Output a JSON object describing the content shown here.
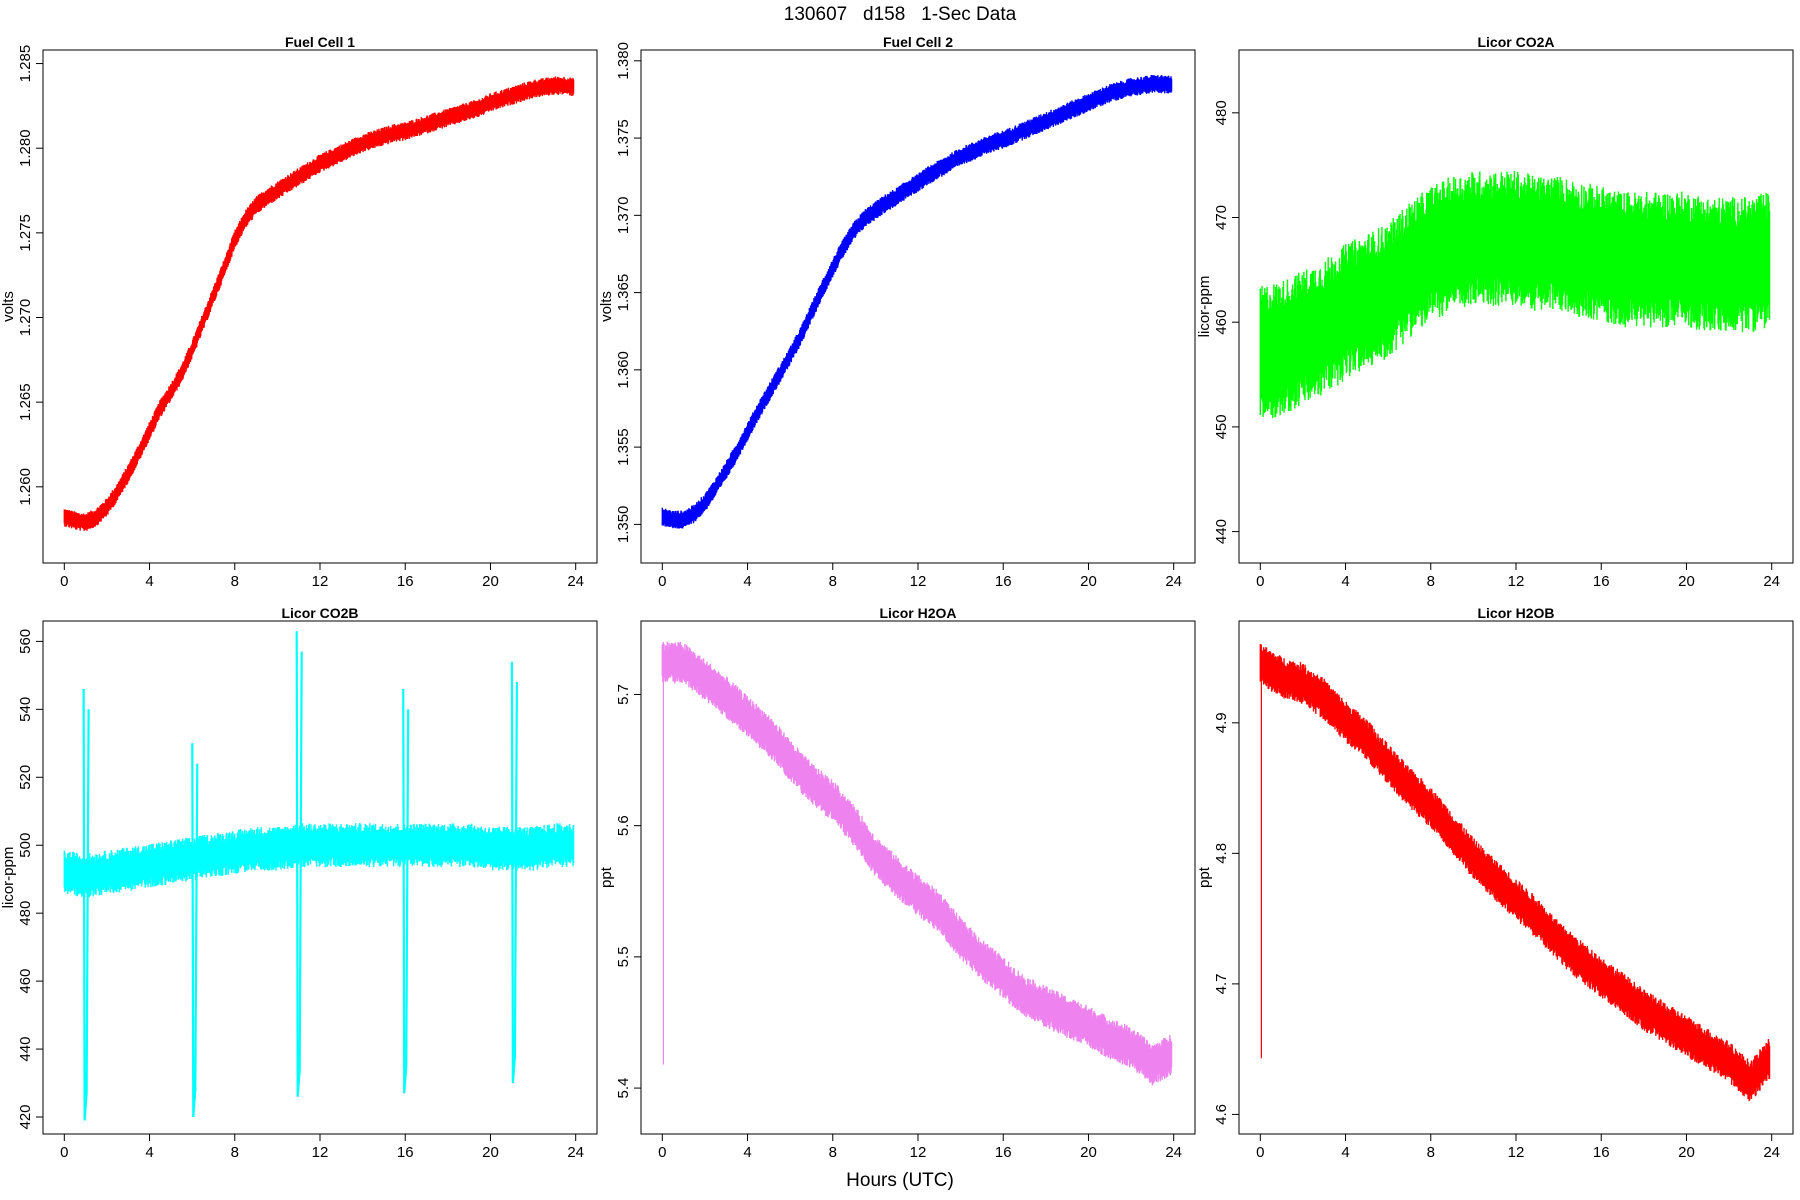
{
  "figure": {
    "title": "130607   d158   1-Sec Data",
    "xlabel": "Hours (UTC)"
  },
  "chart_data": [
    {
      "type": "line",
      "title": "Fuel Cell 1",
      "xlabel": "",
      "ylabel": "volts",
      "color": "#ff0000",
      "xlim": [
        -1,
        25
      ],
      "ylim": [
        1.2555,
        1.2858
      ],
      "x_ticks": [
        0,
        4,
        8,
        12,
        16,
        20,
        24
      ],
      "y_ticks": [
        1.26,
        1.265,
        1.27,
        1.275,
        1.28,
        1.285
      ],
      "y_tick_labels": [
        "1.260",
        "1.265",
        "1.270",
        "1.275",
        "1.280",
        "1.285"
      ],
      "series": [
        {
          "x": [
            0,
            0.5,
            1,
            1.5,
            2,
            2.5,
            3,
            3.5,
            4,
            4.5,
            5,
            5.5,
            6,
            6.5,
            7,
            7.5,
            8,
            8.5,
            9,
            9.5,
            10,
            10.5,
            11,
            11.5,
            12,
            12.5,
            13,
            13.5,
            14,
            14.5,
            15,
            15.5,
            16,
            16.5,
            17,
            17.5,
            18,
            18.5,
            19,
            19.5,
            20,
            20.5,
            21,
            21.5,
            22,
            22.5,
            23,
            23.5,
            23.9
          ],
          "y": [
            1.2582,
            1.258,
            1.2579,
            1.2582,
            1.2588,
            1.2597,
            1.2608,
            1.262,
            1.2633,
            1.2646,
            1.2656,
            1.2667,
            1.2681,
            1.2697,
            1.2713,
            1.2729,
            1.2746,
            1.2758,
            1.2766,
            1.2771,
            1.2775,
            1.2779,
            1.2783,
            1.2787,
            1.2791,
            1.2794,
            1.2797,
            1.28,
            1.2803,
            1.2805,
            1.2807,
            1.2809,
            1.281,
            1.2812,
            1.2814,
            1.2816,
            1.2818,
            1.282,
            1.2822,
            1.2824,
            1.2827,
            1.2829,
            1.2831,
            1.2833,
            1.2835,
            1.2836,
            1.2837,
            1.2837,
            1.2836
          ],
          "spread": 0.00055
        }
      ]
    },
    {
      "type": "line",
      "title": "Fuel Cell 2",
      "xlabel": "",
      "ylabel": "volts",
      "color": "#0000ff",
      "xlim": [
        -1,
        25
      ],
      "ylim": [
        1.3475,
        1.3807
      ],
      "x_ticks": [
        0,
        4,
        8,
        12,
        16,
        20,
        24
      ],
      "y_ticks": [
        1.35,
        1.355,
        1.36,
        1.365,
        1.37,
        1.375,
        1.38
      ],
      "y_tick_labels": [
        "1.350",
        "1.355",
        "1.360",
        "1.365",
        "1.370",
        "1.375",
        "1.380"
      ],
      "series": [
        {
          "x": [
            0,
            0.5,
            1,
            1.5,
            2,
            2.5,
            3,
            3.5,
            4,
            4.5,
            5,
            5.5,
            6,
            6.5,
            7,
            7.5,
            8,
            8.5,
            9,
            9.5,
            10,
            10.5,
            11,
            11.5,
            12,
            12.5,
            13,
            13.5,
            14,
            14.5,
            15,
            15.5,
            16,
            16.5,
            17,
            17.5,
            18,
            18.5,
            19,
            19.5,
            20,
            20.5,
            21,
            21.5,
            22,
            22.5,
            23,
            23.5,
            23.9
          ],
          "y": [
            1.3505,
            1.3503,
            1.3503,
            1.3507,
            1.3514,
            1.3524,
            1.3535,
            1.3547,
            1.356,
            1.3573,
            1.3585,
            1.3597,
            1.3609,
            1.3622,
            1.3637,
            1.3652,
            1.3666,
            1.3679,
            1.369,
            1.3698,
            1.3703,
            1.3708,
            1.3712,
            1.3717,
            1.3721,
            1.3726,
            1.373,
            1.3734,
            1.3738,
            1.3741,
            1.3744,
            1.3747,
            1.3749,
            1.3752,
            1.3755,
            1.3758,
            1.3761,
            1.3764,
            1.3767,
            1.377,
            1.3773,
            1.3776,
            1.3779,
            1.3781,
            1.3783,
            1.3784,
            1.3785,
            1.3785,
            1.3784
          ],
          "spread": 0.0006
        }
      ]
    },
    {
      "type": "line",
      "title": "Licor CO2A",
      "xlabel": "",
      "ylabel": "licor-ppm",
      "color": "#00ff00",
      "xlim": [
        -1,
        25
      ],
      "ylim": [
        437,
        486
      ],
      "x_ticks": [
        0,
        4,
        8,
        12,
        16,
        20,
        24
      ],
      "y_ticks": [
        440,
        450,
        460,
        470,
        480
      ],
      "y_tick_labels": [
        "440",
        "450",
        "460",
        "470",
        "480"
      ],
      "series": [
        {
          "x": [
            0,
            1,
            2,
            3,
            4,
            5,
            6,
            7,
            8,
            9,
            10,
            11,
            12,
            13,
            14,
            15,
            16,
            17,
            18,
            19,
            20,
            21,
            22,
            23,
            23.9
          ],
          "y": [
            457,
            457.5,
            458.5,
            459.5,
            461,
            462,
            463,
            465,
            466.5,
            467.5,
            468,
            468,
            468,
            467.5,
            467.5,
            467,
            466.5,
            466,
            466,
            466,
            466,
            465.5,
            465.5,
            465.5,
            466
          ],
          "spread": 6.5
        }
      ]
    },
    {
      "type": "line",
      "title": "Licor CO2B",
      "xlabel": "",
      "ylabel": "licor-ppm",
      "color": "#00ffff",
      "xlim": [
        -1,
        25
      ],
      "ylim": [
        415,
        566
      ],
      "x_ticks": [
        0,
        4,
        8,
        12,
        16,
        20,
        24
      ],
      "y_ticks": [
        420,
        440,
        460,
        480,
        500,
        520,
        540,
        560
      ],
      "y_tick_labels": [
        "420",
        "440",
        "460",
        "480",
        "500",
        "520",
        "540",
        "560"
      ],
      "series": [
        {
          "x": [
            0,
            1,
            2,
            3,
            4,
            5,
            6,
            7,
            8,
            9,
            10,
            11,
            12,
            13,
            14,
            15,
            16,
            17,
            18,
            19,
            20,
            21,
            22,
            23,
            23.9
          ],
          "y": [
            492,
            491,
            492,
            493,
            494,
            495,
            496,
            497,
            498,
            499,
            499,
            500,
            500,
            500,
            500,
            500,
            500,
            500,
            500,
            500,
            499,
            499,
            499,
            500,
            500
          ],
          "spread": 6.5,
          "drops": [
            {
              "x": 1.0,
              "min": 419,
              "max": 546
            },
            {
              "x": 6.1,
              "min": 420,
              "max": 530
            },
            {
              "x": 11.0,
              "min": 426,
              "max": 563
            },
            {
              "x": 16.0,
              "min": 427,
              "max": 546
            },
            {
              "x": 21.1,
              "min": 430,
              "max": 554
            }
          ]
        }
      ]
    },
    {
      "type": "line",
      "title": "Licor H2OA",
      "xlabel": "",
      "ylabel": "ppt",
      "color": "#ee82ee",
      "xlim": [
        -1,
        25
      ],
      "ylim": [
        5.365,
        5.756
      ],
      "x_ticks": [
        0,
        4,
        8,
        12,
        16,
        20,
        24
      ],
      "y_ticks": [
        5.4,
        5.5,
        5.6,
        5.7
      ],
      "y_tick_labels": [
        "5.4",
        "5.5",
        "5.6",
        "5.7"
      ],
      "series": [
        {
          "x": [
            0,
            1,
            2,
            3,
            4,
            5,
            6,
            7,
            8,
            9,
            10,
            11,
            12,
            13,
            14,
            15,
            16,
            17,
            18,
            19,
            20,
            21,
            22,
            23,
            23.9
          ],
          "y": [
            5.725,
            5.724,
            5.711,
            5.698,
            5.683,
            5.669,
            5.65,
            5.632,
            5.619,
            5.6,
            5.577,
            5.561,
            5.547,
            5.534,
            5.514,
            5.498,
            5.484,
            5.47,
            5.462,
            5.454,
            5.447,
            5.438,
            5.431,
            5.418,
            5.425
          ],
          "spread": 0.016,
          "spike": {
            "x": 0.05,
            "min": 5.418,
            "max": 5.74
          }
        }
      ]
    },
    {
      "type": "line",
      "title": "Licor H2OB",
      "xlabel": "",
      "ylabel": "ppt",
      "color": "#ff0000",
      "xlim": [
        -1,
        25
      ],
      "ylim": [
        4.585,
        4.978
      ],
      "x_ticks": [
        0,
        4,
        8,
        12,
        16,
        20,
        24
      ],
      "y_ticks": [
        4.6,
        4.7,
        4.8,
        4.9
      ],
      "y_tick_labels": [
        "4.6",
        "4.7",
        "4.8",
        "4.9"
      ],
      "series": [
        {
          "x": [
            0,
            1,
            2,
            3,
            4,
            5,
            6,
            7,
            8,
            9,
            10,
            11,
            12,
            13,
            14,
            15,
            16,
            17,
            18,
            19,
            20,
            21,
            22,
            23,
            23.9
          ],
          "y": [
            4.945,
            4.935,
            4.93,
            4.918,
            4.901,
            4.887,
            4.868,
            4.85,
            4.835,
            4.816,
            4.796,
            4.78,
            4.765,
            4.75,
            4.732,
            4.718,
            4.705,
            4.693,
            4.68,
            4.67,
            4.66,
            4.65,
            4.64,
            4.625,
            4.643
          ],
          "spread": 0.016,
          "spike": {
            "x": 0.05,
            "min": 4.643,
            "max": 4.96
          }
        }
      ]
    }
  ]
}
